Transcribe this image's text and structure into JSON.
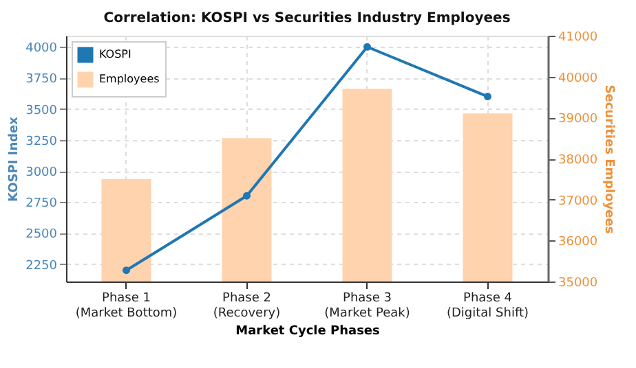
{
  "chart_data": {
    "type": "bar",
    "title": "Correlation: KOSPI vs Securities Industry Employees",
    "xlabel": "Market Cycle Phases",
    "ylabel": "KOSPI Index",
    "y2label": "Securities Employees",
    "categories": [
      "Phase 1\n(Market Bottom)",
      "Phase 2\n(Recovery)",
      "Phase 3\n(Market Peak)",
      "Phase 4\n(Digital Shift)"
    ],
    "series": [
      {
        "name": "KOSPI",
        "type": "line",
        "color": "#1f77b4",
        "values": [
          2200,
          2800,
          4000,
          3600
        ]
      },
      {
        "name": "Employees",
        "axis": "y2",
        "color": "#ffd3ad",
        "values": [
          37500,
          38500,
          39700,
          39100
        ]
      }
    ],
    "ylim": [
      2110,
      4090
    ],
    "yticks": [
      2250,
      2500,
      2750,
      3000,
      3250,
      3500,
      3750,
      4000
    ],
    "y2lim": [
      35000,
      41000
    ],
    "y2ticks": [
      35000,
      36000,
      37000,
      38000,
      39000,
      40000,
      41000
    ],
    "grid": true,
    "legend": "top left",
    "marker": "circle",
    "line_style": "solid"
  }
}
